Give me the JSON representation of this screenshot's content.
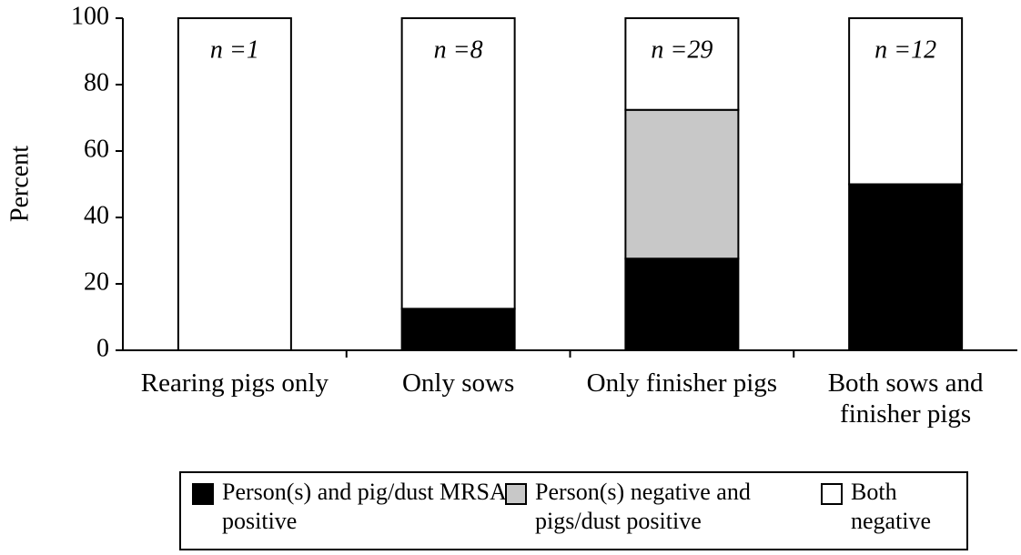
{
  "chart_data": {
    "type": "stacked_bar",
    "y_label": "Percent",
    "categories": [
      "Rearing pigs only",
      "Only sows",
      "Only finisher pigs",
      "Both sows and finisher pigs"
    ],
    "annotations": [
      "n =1",
      "n =8",
      "n =29",
      "n =12"
    ],
    "series": [
      {
        "name": "Person(s) and pig/dust MRSA positive",
        "color": "#000000",
        "values": [
          0,
          12.5,
          27.6,
          50
        ]
      },
      {
        "name": "Person(s) negative and pigs/dust positive",
        "color": "#c8c8c8",
        "values": [
          0,
          0,
          44.8,
          0
        ]
      },
      {
        "name": "Both negative",
        "color": "#ffffff",
        "values": [
          100,
          87.5,
          27.6,
          50
        ]
      }
    ],
    "ylim": [
      0,
      100
    ],
    "yticks": [
      0,
      20,
      40,
      60,
      80,
      100
    ],
    "legend": "bottom"
  }
}
